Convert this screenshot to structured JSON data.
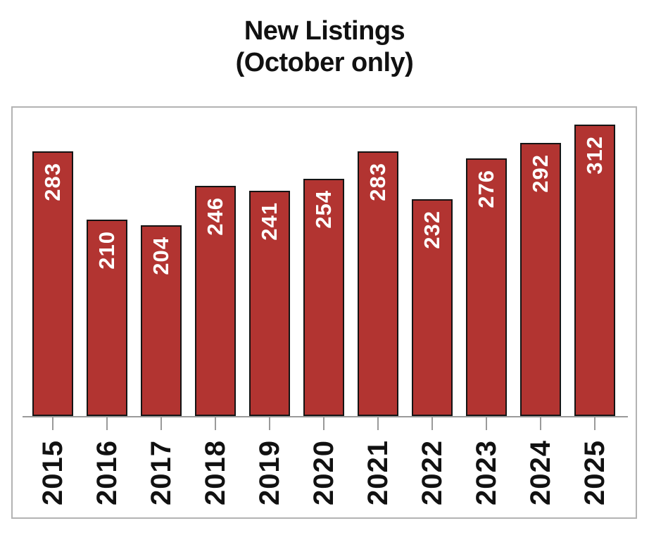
{
  "title": {
    "line1": "New Listings",
    "line2": "(October only)"
  },
  "chart_data": {
    "type": "bar",
    "title": "New Listings (October only)",
    "categories": [
      "2015",
      "2016",
      "2017",
      "2018",
      "2019",
      "2020",
      "2021",
      "2022",
      "2023",
      "2024",
      "2025"
    ],
    "values": [
      283,
      210,
      204,
      246,
      241,
      254,
      283,
      232,
      276,
      292,
      312
    ],
    "xlabel": "",
    "ylabel": "",
    "ylim": [
      0,
      330
    ],
    "grid": false,
    "legend_position": "none",
    "value_labels_shown": true,
    "label_rotation": "vertical-bottom-to-top",
    "colors": {
      "bar_fill": "#b23431",
      "bar_border": "#141414",
      "value_label": "#ffffff",
      "axis": "#9a9a9a",
      "panel_border": "#b3b3b3",
      "title_text": "#111111",
      "year_label_text": "#111111",
      "background": "#ffffff"
    }
  }
}
